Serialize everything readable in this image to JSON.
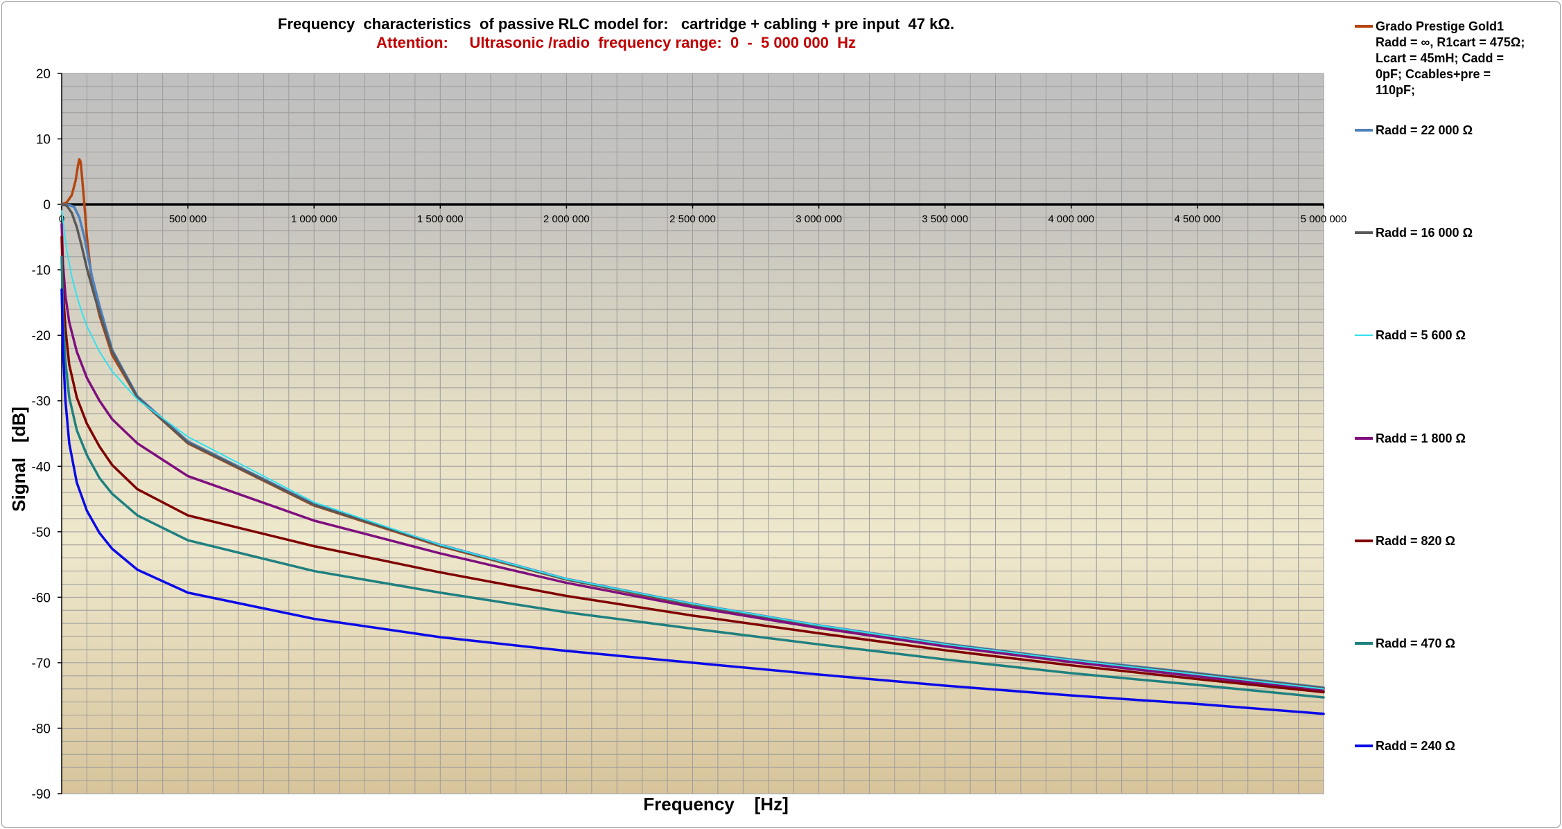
{
  "chart_data": {
    "type": "line",
    "title": "Frequency  characteristics  of passive RLC model for:   cartridge + cabling + pre input  47 kΩ.",
    "subtitle": "Attention:     Ultrasonic /radio  frequency range:  0  -  5 000 000  Hz",
    "xlabel": "Frequency    [Hz]",
    "ylabel": "Signal   [dB]",
    "xlim": [
      0,
      5000000
    ],
    "ylim": [
      -90,
      20
    ],
    "x_ticks": [
      0,
      500000,
      1000000,
      1500000,
      2000000,
      2500000,
      3000000,
      3500000,
      4000000,
      4500000,
      5000000
    ],
    "x_tick_labels": [
      "0",
      "500 000",
      "1 000 000",
      "1 500 000",
      "2 000 000",
      "2 500 000",
      "3 000 000",
      "3 500 000",
      "4 000 000",
      "4 500 000",
      "5 000 000"
    ],
    "y_ticks": [
      20,
      10,
      0,
      -10,
      -20,
      -30,
      -40,
      -50,
      -60,
      -70,
      -80,
      -90
    ],
    "y_tick_labels": [
      "20",
      "10",
      "0",
      "-10",
      "-20",
      "-30",
      "-40",
      "-50",
      "-60",
      "-70",
      "-80",
      "-90"
    ],
    "grid": true,
    "legend_position": "right",
    "series": [
      {
        "name": "Grado Prestige Gold1 Radd = ∞,  R1cart = 475Ω; Lcart = 45mH;  Cadd = 0pF;  Ccables+pre = 110pF;",
        "legend_lines": [
          "Grado Prestige Gold1",
          "Radd = ∞,  R1cart = 475Ω;",
          "Lcart = 45mH;  Cadd =",
          "0pF;  Ccables+pre =",
          "110pF;"
        ],
        "color": "#b5470f",
        "width": 3.5,
        "points": [
          [
            0,
            0
          ],
          [
            20000,
            0.3
          ],
          [
            40000,
            1.4
          ],
          [
            55000,
            3.6
          ],
          [
            65000,
            6.0
          ],
          [
            70000,
            6.9
          ],
          [
            75000,
            6.5
          ],
          [
            80000,
            4.5
          ],
          [
            90000,
            0
          ],
          [
            100000,
            -5
          ],
          [
            120000,
            -12
          ],
          [
            150000,
            -17
          ],
          [
            200000,
            -23
          ],
          [
            300000,
            -29.5
          ],
          [
            500000,
            -36.5
          ],
          [
            1000000,
            -46
          ],
          [
            1500000,
            -52.2
          ],
          [
            2000000,
            -57.3
          ],
          [
            2500000,
            -61.2
          ],
          [
            3000000,
            -64.5
          ],
          [
            3500000,
            -67.3
          ],
          [
            4000000,
            -69.6
          ],
          [
            4500000,
            -71.8
          ],
          [
            5000000,
            -74
          ]
        ]
      },
      {
        "name": "Radd = 22 000  Ω",
        "color": "#4f81bd",
        "width": 3.5,
        "points": [
          [
            0,
            0
          ],
          [
            30000,
            -0.1
          ],
          [
            50000,
            -0.4
          ],
          [
            70000,
            -2
          ],
          [
            90000,
            -5
          ],
          [
            120000,
            -11
          ],
          [
            150000,
            -15.5
          ],
          [
            200000,
            -22.2
          ],
          [
            300000,
            -29.3
          ],
          [
            500000,
            -36.2
          ],
          [
            1000000,
            -45.8
          ],
          [
            1500000,
            -52
          ],
          [
            2000000,
            -57.2
          ],
          [
            2500000,
            -61
          ],
          [
            3000000,
            -64.3
          ],
          [
            3500000,
            -67.1
          ],
          [
            4000000,
            -69.5
          ],
          [
            4500000,
            -71.6
          ],
          [
            5000000,
            -73.8
          ]
        ]
      },
      {
        "name": "Radd = 16 000  Ω",
        "color": "#595959",
        "width": 3.5,
        "points": [
          [
            0,
            0
          ],
          [
            20000,
            -0.2
          ],
          [
            40000,
            -1.3
          ],
          [
            60000,
            -3.5
          ],
          [
            80000,
            -6.5
          ],
          [
            100000,
            -9.8
          ],
          [
            130000,
            -14
          ],
          [
            160000,
            -17.8
          ],
          [
            200000,
            -22.5
          ],
          [
            300000,
            -29.5
          ],
          [
            500000,
            -36.4
          ],
          [
            1000000,
            -45.9
          ],
          [
            1500000,
            -52.1
          ],
          [
            2000000,
            -57.3
          ],
          [
            2500000,
            -61.1
          ],
          [
            3000000,
            -64.4
          ],
          [
            3500000,
            -67.2
          ],
          [
            4000000,
            -69.6
          ],
          [
            4500000,
            -71.7
          ],
          [
            5000000,
            -73.9
          ]
        ]
      },
      {
        "name": "Radd = 5 600  Ω",
        "color": "#33e0f0",
        "width": 2,
        "points": [
          [
            0,
            -1
          ],
          [
            10000,
            -4
          ],
          [
            20000,
            -7
          ],
          [
            40000,
            -11
          ],
          [
            60000,
            -14
          ],
          [
            80000,
            -16.5
          ],
          [
            100000,
            -18.6
          ],
          [
            150000,
            -22.5
          ],
          [
            200000,
            -25.5
          ],
          [
            300000,
            -29.8
          ],
          [
            500000,
            -35.5
          ],
          [
            1000000,
            -45.5
          ],
          [
            1500000,
            -52
          ],
          [
            2000000,
            -57.2
          ],
          [
            2500000,
            -61
          ],
          [
            3000000,
            -64.3
          ],
          [
            3500000,
            -67.2
          ],
          [
            4000000,
            -69.6
          ],
          [
            4500000,
            -71.8
          ],
          [
            5000000,
            -74
          ]
        ]
      },
      {
        "name": "Radd = 1 800  Ω",
        "color": "#7f0f7e",
        "width": 3.5,
        "points": [
          [
            0,
            -3
          ],
          [
            5000,
            -9
          ],
          [
            15000,
            -14
          ],
          [
            30000,
            -18
          ],
          [
            60000,
            -22.5
          ],
          [
            100000,
            -26.5
          ],
          [
            150000,
            -30
          ],
          [
            200000,
            -32.8
          ],
          [
            300000,
            -36.5
          ],
          [
            500000,
            -41.5
          ],
          [
            1000000,
            -48.3
          ],
          [
            1500000,
            -53.3
          ],
          [
            2000000,
            -57.8
          ],
          [
            2500000,
            -61.5
          ],
          [
            3000000,
            -64.7
          ],
          [
            3500000,
            -67.5
          ],
          [
            4000000,
            -69.9
          ],
          [
            4500000,
            -72.1
          ],
          [
            5000000,
            -74.3
          ]
        ]
      },
      {
        "name": "Radd = 820  Ω",
        "color": "#7f0000",
        "width": 3.5,
        "points": [
          [
            0,
            -5
          ],
          [
            5000,
            -13
          ],
          [
            15000,
            -19
          ],
          [
            30000,
            -24.5
          ],
          [
            60000,
            -29.5
          ],
          [
            100000,
            -33.5
          ],
          [
            150000,
            -37
          ],
          [
            200000,
            -39.8
          ],
          [
            300000,
            -43.5
          ],
          [
            500000,
            -47.5
          ],
          [
            1000000,
            -52.2
          ],
          [
            1500000,
            -56.2
          ],
          [
            2000000,
            -59.8
          ],
          [
            2500000,
            -62.8
          ],
          [
            3000000,
            -65.5
          ],
          [
            3500000,
            -68.1
          ],
          [
            4000000,
            -70.4
          ],
          [
            4500000,
            -72.5
          ],
          [
            5000000,
            -74.5
          ]
        ]
      },
      {
        "name": "Radd = 470  Ω",
        "color": "#1f8080",
        "width": 3.5,
        "points": [
          [
            0,
            -8
          ],
          [
            5000,
            -17
          ],
          [
            15000,
            -24
          ],
          [
            30000,
            -29.5
          ],
          [
            60000,
            -34.5
          ],
          [
            100000,
            -38.3
          ],
          [
            150000,
            -41.8
          ],
          [
            200000,
            -44.2
          ],
          [
            300000,
            -47.5
          ],
          [
            500000,
            -51.3
          ],
          [
            1000000,
            -56
          ],
          [
            1500000,
            -59.3
          ],
          [
            2000000,
            -62.3
          ],
          [
            2500000,
            -64.8
          ],
          [
            3000000,
            -67.2
          ],
          [
            3500000,
            -69.5
          ],
          [
            4000000,
            -71.6
          ],
          [
            4500000,
            -73.4
          ],
          [
            5000000,
            -75.3
          ]
        ]
      },
      {
        "name": "Radd = 240  Ω",
        "color": "#0a0ae8",
        "width": 3.5,
        "points": [
          [
            0,
            -13
          ],
          [
            5000,
            -22
          ],
          [
            15000,
            -30
          ],
          [
            30000,
            -36.5
          ],
          [
            60000,
            -42.5
          ],
          [
            100000,
            -46.8
          ],
          [
            150000,
            -50.2
          ],
          [
            200000,
            -52.6
          ],
          [
            300000,
            -55.8
          ],
          [
            500000,
            -59.3
          ],
          [
            1000000,
            -63.3
          ],
          [
            1500000,
            -66.1
          ],
          [
            2000000,
            -68.2
          ],
          [
            2500000,
            -70
          ],
          [
            3000000,
            -71.8
          ],
          [
            3500000,
            -73.5
          ],
          [
            4000000,
            -75
          ],
          [
            4500000,
            -76.3
          ],
          [
            5000000,
            -77.8
          ]
        ]
      }
    ]
  }
}
